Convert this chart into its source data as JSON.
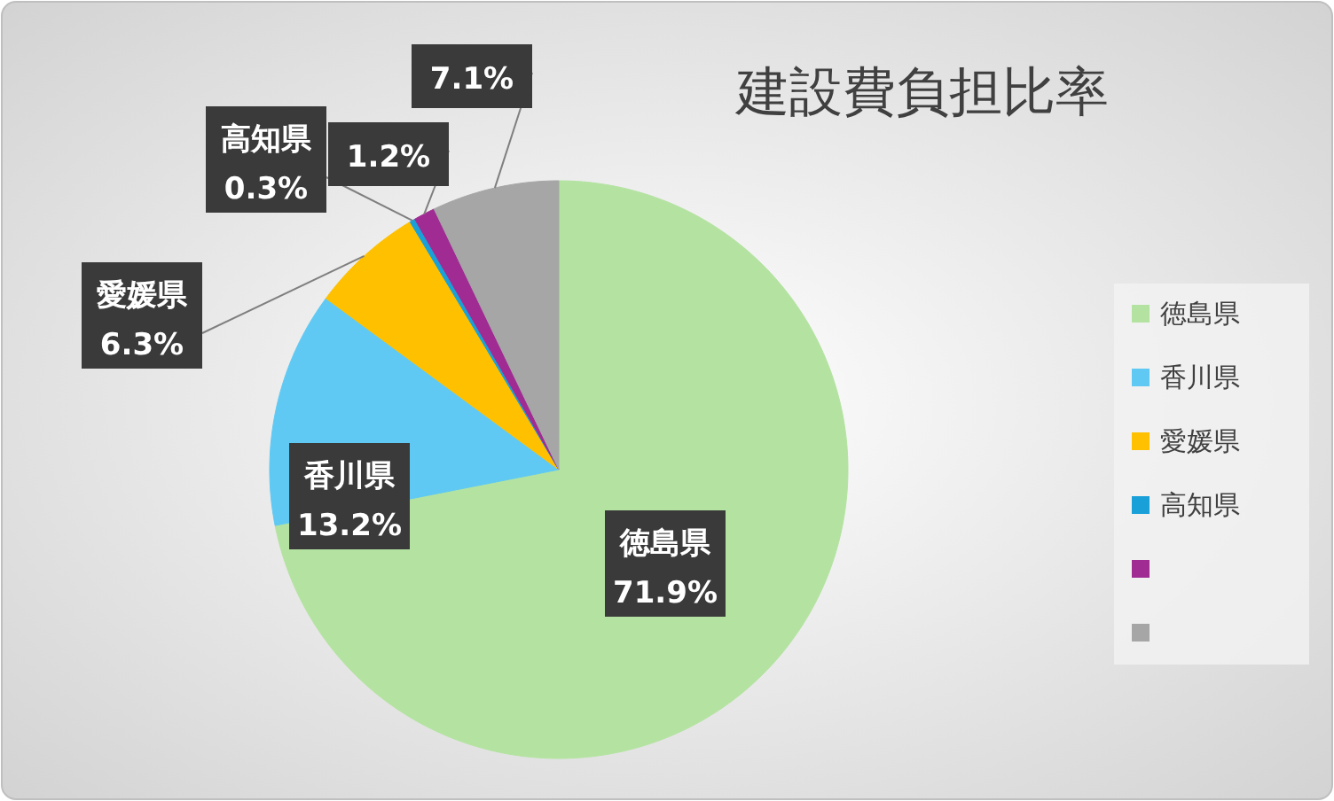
{
  "chart_data": {
    "type": "pie",
    "title": "建設費負担比率",
    "categories": [
      "徳島県",
      "香川県",
      "愛媛県",
      "高知県",
      null,
      null
    ],
    "values": [
      71.9,
      13.2,
      6.3,
      0.3,
      1.2,
      7.1
    ],
    "colors": [
      "#b4e3a1",
      "#5fc9f3",
      "#ffc000",
      "#1aa0d8",
      "#a02b93",
      "#a6a6a6"
    ],
    "value_labels": [
      "71.9%",
      "13.2%",
      "6.3%",
      "0.3%",
      "1.2%",
      "7.1%"
    ],
    "legend": "right"
  }
}
